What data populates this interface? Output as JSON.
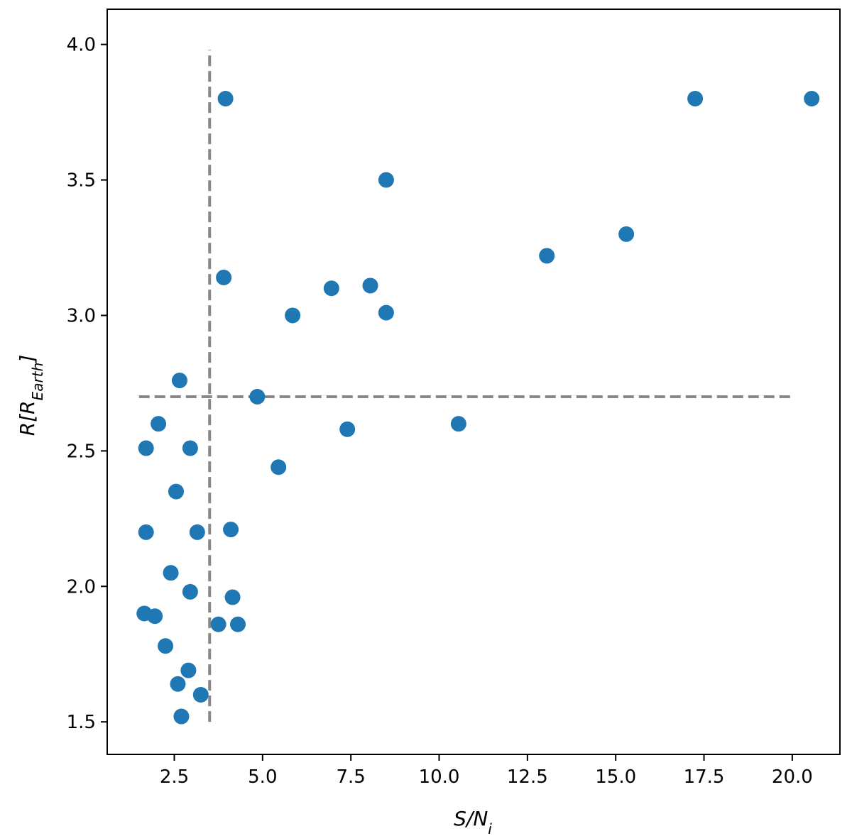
{
  "chart_data": {
    "type": "scatter",
    "title": "",
    "xlabel": {
      "base": "S/N",
      "sub": "i"
    },
    "ylabel": {
      "prefix": "R[R",
      "sub": "Earth",
      "suffix": "]"
    },
    "xlim": [
      0.6,
      21.35
    ],
    "ylim": [
      1.38,
      4.13
    ],
    "xticks": [
      2.5,
      5.0,
      7.5,
      10.0,
      12.5,
      15.0,
      17.5,
      20.0
    ],
    "xtick_labels": [
      "2.5",
      "5.0",
      "7.5",
      "10.0",
      "12.5",
      "15.0",
      "17.5",
      "20.0"
    ],
    "yticks": [
      1.5,
      2.0,
      2.5,
      3.0,
      3.5,
      4.0
    ],
    "ytick_labels": [
      "1.5",
      "2.0",
      "2.5",
      "3.0",
      "3.5",
      "4.0"
    ],
    "grid": false,
    "point_color": "#1f77b4",
    "threshold_color": "#888888",
    "thresholds": {
      "vertical": {
        "x": 3.5,
        "y_range": [
          1.5,
          3.98
        ]
      },
      "horizontal": {
        "y": 2.7,
        "x_range": [
          1.5,
          20.0
        ]
      }
    },
    "series": [
      {
        "x": [
          3.95,
          20.55,
          17.25,
          8.5,
          15.3,
          13.05,
          3.9,
          6.95,
          8.05,
          5.85,
          8.5,
          2.65,
          4.85,
          2.05,
          1.7,
          2.95,
          7.4,
          10.55,
          5.45,
          2.55,
          1.7,
          3.15,
          4.1,
          2.4,
          2.95,
          4.15,
          1.65,
          1.95,
          3.75,
          4.3,
          2.25,
          2.9,
          2.6,
          3.25,
          2.7
        ],
        "y": [
          3.8,
          3.8,
          3.8,
          3.5,
          3.3,
          3.22,
          3.14,
          3.1,
          3.11,
          3.0,
          3.01,
          2.76,
          2.7,
          2.6,
          2.51,
          2.51,
          2.58,
          2.6,
          2.44,
          2.35,
          2.2,
          2.2,
          2.21,
          2.05,
          1.98,
          1.96,
          1.9,
          1.89,
          1.86,
          1.86,
          1.78,
          1.69,
          1.64,
          1.6,
          1.52
        ]
      }
    ]
  }
}
